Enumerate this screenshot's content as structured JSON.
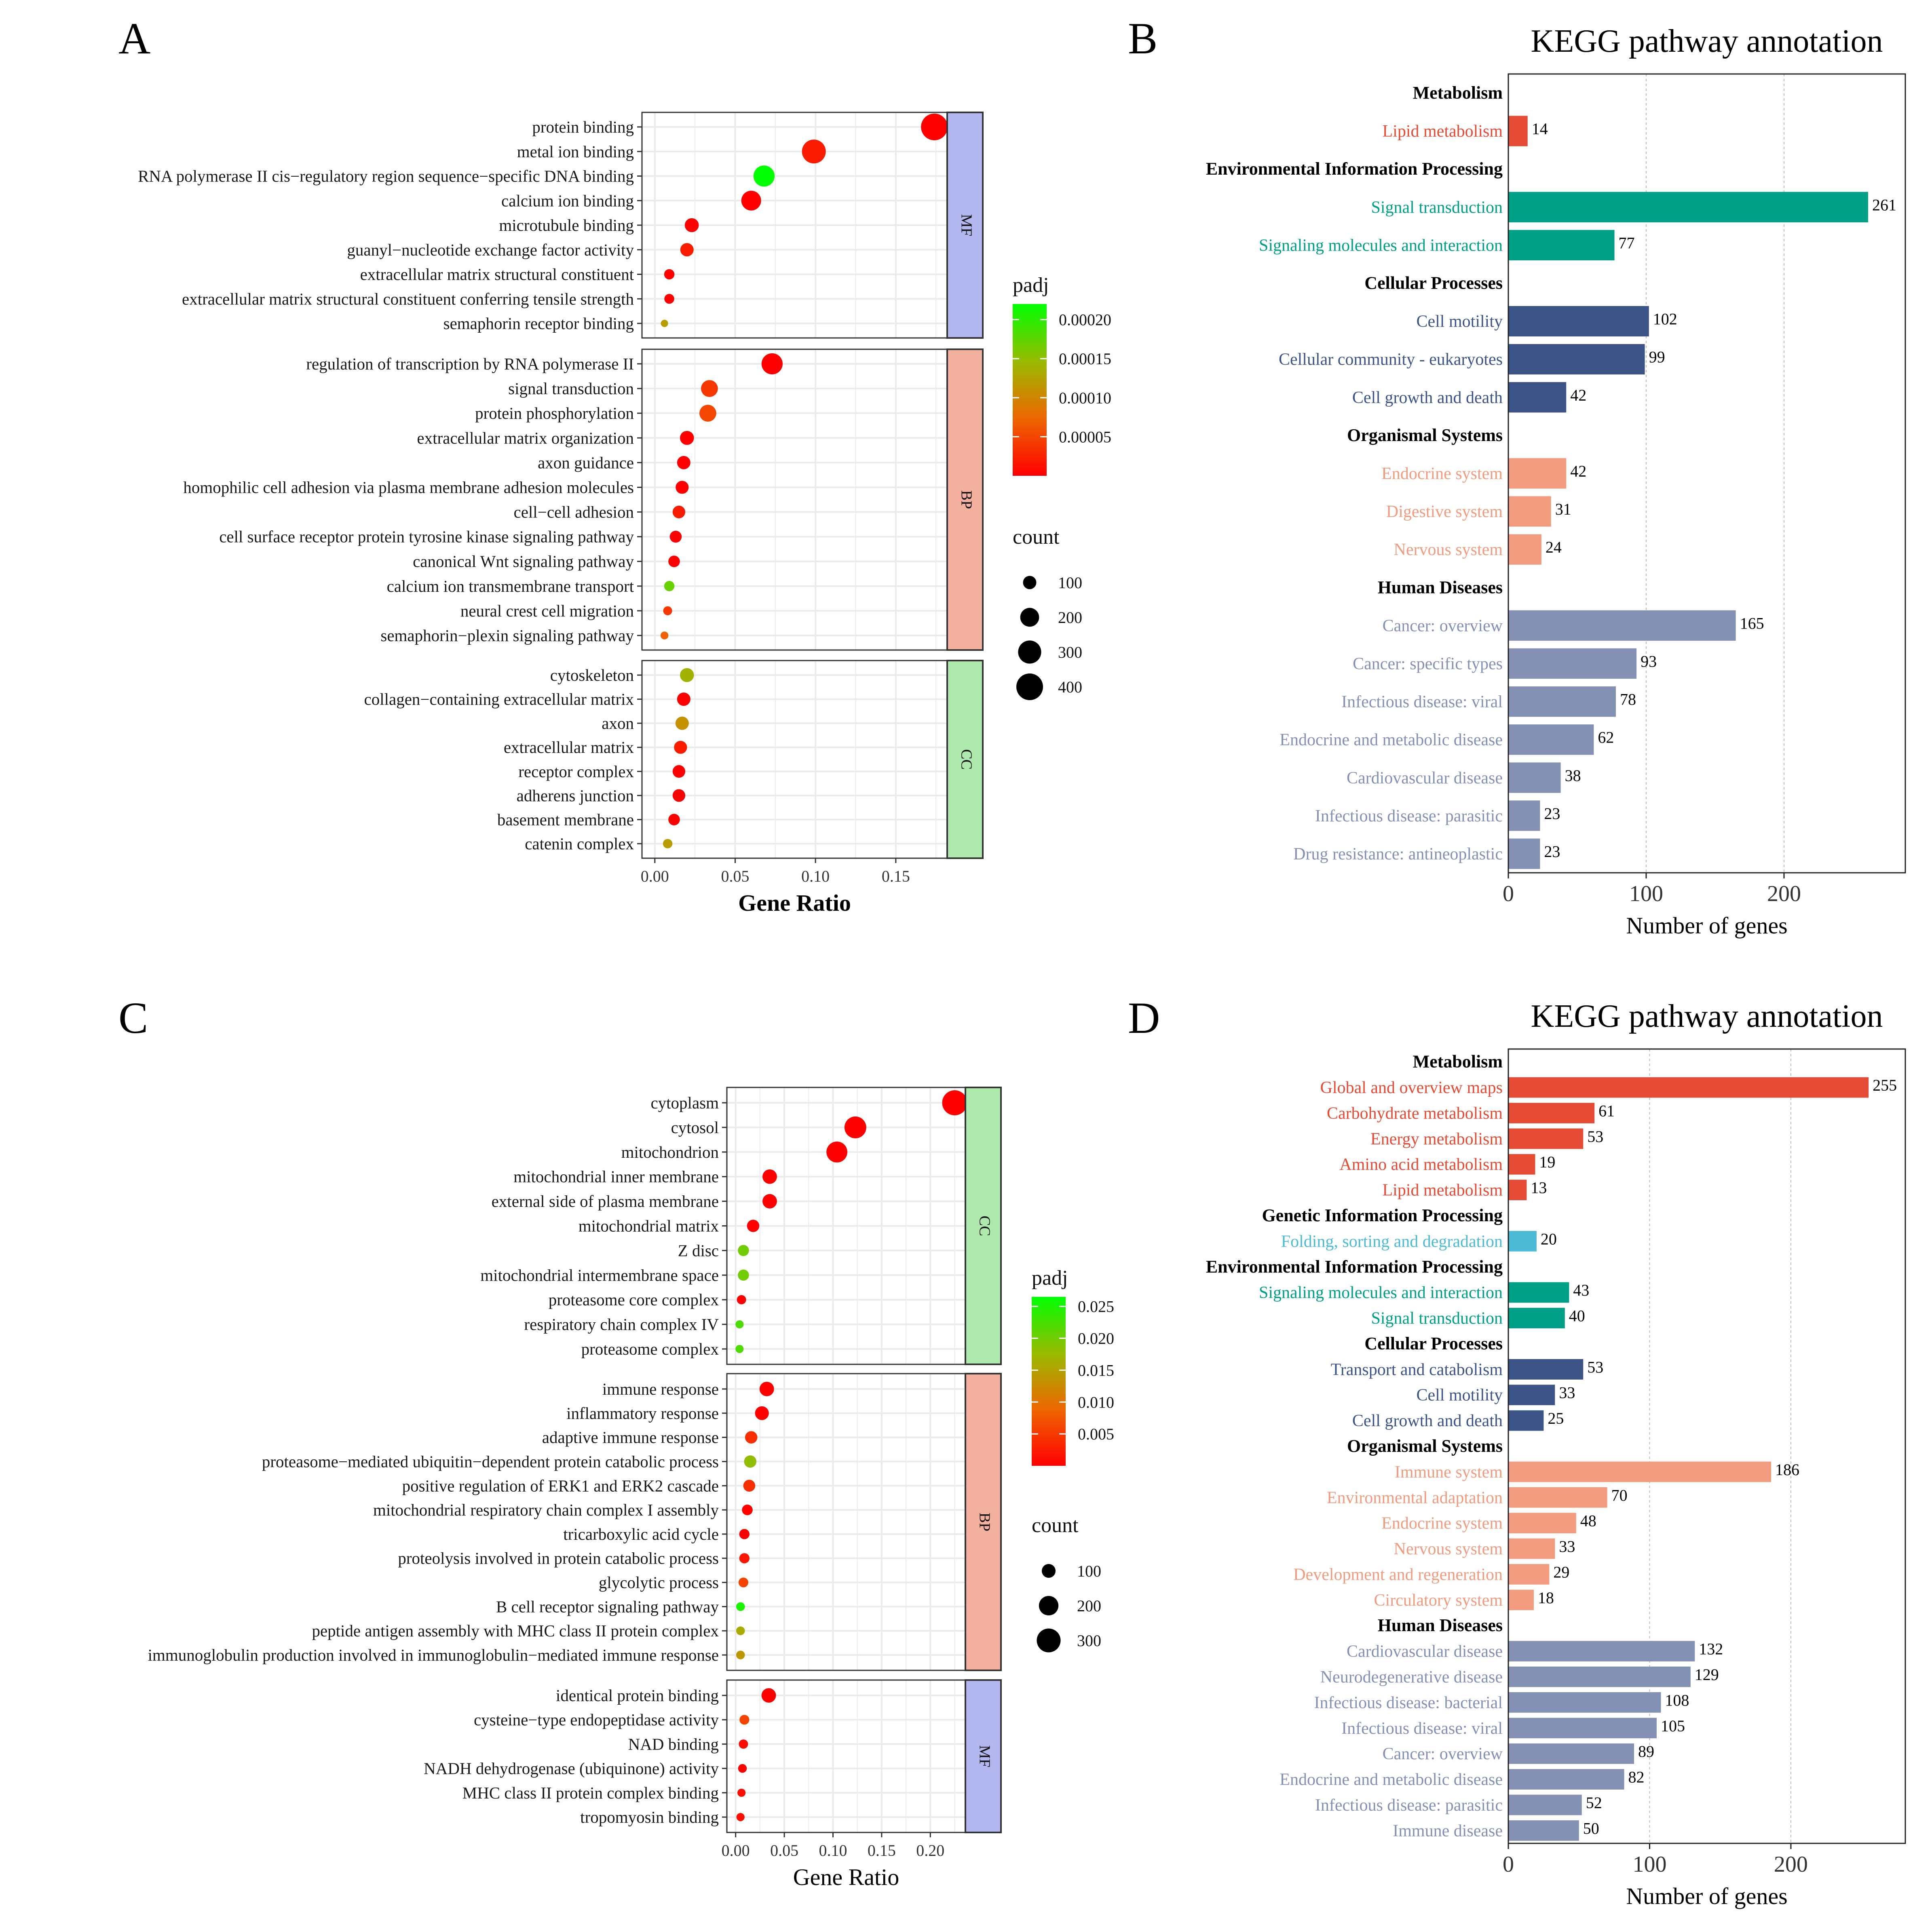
{
  "colors": {
    "padj_low": "#ff0000",
    "padj_mid1": "#ee6600",
    "padj_mid2": "#99bb00",
    "padj_high": "#00ff00",
    "strip_MF": "#b3b7f0",
    "strip_BP": "#f4b09f",
    "strip_CC": "#aee8ad",
    "kegg_Metabolism": "#e64b35",
    "kegg_Genetic": "#4dbbd5",
    "kegg_Environmental": "#00a087",
    "kegg_Cellular": "#3c5488",
    "kegg_Organismal": "#f39b7f",
    "kegg_Human": "#8491b4"
  },
  "chart_data": [
    {
      "panel": "A",
      "type": "scatter",
      "xlabel": "Gene Ratio",
      "xlim": [
        -0.008,
        0.182
      ],
      "xticks": [
        0.0,
        0.05,
        0.1,
        0.15
      ],
      "tick_labels": [
        "0.00",
        "0.05",
        "0.10",
        "0.15"
      ],
      "legend": {
        "padj_title": "padj",
        "padj_range": [
          0.0,
          0.00022
        ],
        "padj_ticks": [
          5e-05,
          0.0001,
          0.00015,
          0.0002
        ],
        "padj_tick_labels": [
          "0.00005",
          "0.00010",
          "0.00015",
          "0.00020"
        ],
        "count_title": "count",
        "count_values": [
          100,
          200,
          300,
          400
        ],
        "count_labels": [
          "100",
          "200",
          "300",
          "400"
        ]
      },
      "facets": [
        {
          "name": "MF",
          "terms": [
            {
              "term": "protein binding",
              "ratio": 0.174,
              "padj": 0.0,
              "count": 400
            },
            {
              "term": "metal ion binding",
              "ratio": 0.099,
              "padj": 2e-05,
              "count": 320
            },
            {
              "term": "RNA polymerase II cis−regulatory region sequence−specific DNA binding",
              "ratio": 0.068,
              "padj": 0.00022,
              "count": 250
            },
            {
              "term": "calcium ion binding",
              "ratio": 0.06,
              "padj": 0.0,
              "count": 220
            },
            {
              "term": "microtubule binding",
              "ratio": 0.023,
              "padj": 0.0,
              "count": 110
            },
            {
              "term": "guanyl−nucleotide exchange factor activity",
              "ratio": 0.02,
              "padj": 2e-05,
              "count": 100
            },
            {
              "term": "extracellular matrix structural constituent",
              "ratio": 0.009,
              "padj": 0.0,
              "count": 60
            },
            {
              "term": "extracellular matrix structural constituent conferring tensile strength",
              "ratio": 0.009,
              "padj": 0.0,
              "count": 55
            },
            {
              "term": "semaphorin receptor binding",
              "ratio": 0.006,
              "padj": 0.00012,
              "count": 30
            }
          ]
        },
        {
          "name": "BP",
          "terms": [
            {
              "term": "regulation of transcription by RNA polymerase II",
              "ratio": 0.073,
              "padj": 0.0,
              "count": 250
            },
            {
              "term": "signal transduction",
              "ratio": 0.034,
              "padj": 4e-05,
              "count": 160
            },
            {
              "term": "protein phosphorylation",
              "ratio": 0.033,
              "padj": 5e-05,
              "count": 160
            },
            {
              "term": "extracellular matrix organization",
              "ratio": 0.02,
              "padj": 0.0,
              "count": 110
            },
            {
              "term": "axon guidance",
              "ratio": 0.018,
              "padj": 0.0,
              "count": 100
            },
            {
              "term": "homophilic cell adhesion via plasma membrane adhesion molecules",
              "ratio": 0.017,
              "padj": 0.0,
              "count": 95
            },
            {
              "term": "cell−cell adhesion",
              "ratio": 0.015,
              "padj": 2e-05,
              "count": 90
            },
            {
              "term": "cell surface receptor protein tyrosine kinase signaling pathway",
              "ratio": 0.013,
              "padj": 0.0,
              "count": 80
            },
            {
              "term": "canonical Wnt signaling pathway",
              "ratio": 0.012,
              "padj": 0.0,
              "count": 75
            },
            {
              "term": "calcium ion transmembrane transport",
              "ratio": 0.009,
              "padj": 0.00017,
              "count": 60
            },
            {
              "term": "neural crest cell migration",
              "ratio": 0.008,
              "padj": 4e-05,
              "count": 45
            },
            {
              "term": "semaphorin−plexin signaling pathway",
              "ratio": 0.006,
              "padj": 7e-05,
              "count": 35
            }
          ]
        },
        {
          "name": "CC",
          "terms": [
            {
              "term": "cytoskeleton",
              "ratio": 0.02,
              "padj": 0.00014,
              "count": 110
            },
            {
              "term": "collagen−containing extracellular matrix",
              "ratio": 0.018,
              "padj": 0.0,
              "count": 100
            },
            {
              "term": "axon",
              "ratio": 0.017,
              "padj": 0.00011,
              "count": 100
            },
            {
              "term": "extracellular matrix",
              "ratio": 0.016,
              "padj": 2e-05,
              "count": 95
            },
            {
              "term": "receptor complex",
              "ratio": 0.015,
              "padj": 0.0,
              "count": 90
            },
            {
              "term": "adherens junction",
              "ratio": 0.015,
              "padj": 0.0,
              "count": 90
            },
            {
              "term": "basement membrane",
              "ratio": 0.012,
              "padj": 0.0,
              "count": 75
            },
            {
              "term": "catenin complex",
              "ratio": 0.008,
              "padj": 0.00012,
              "count": 50
            }
          ]
        }
      ]
    },
    {
      "panel": "B",
      "type": "bar",
      "title": "KEGG pathway annotation",
      "xlabel": "Number of genes",
      "xlim": [
        0,
        288
      ],
      "xticks": [
        0,
        100,
        200
      ],
      "tick_labels": [
        "0",
        "100",
        "200"
      ],
      "groups": [
        {
          "name": "Metabolism",
          "key": "Metabolism",
          "items": [
            {
              "label": "Lipid metabolism",
              "value": 14
            }
          ]
        },
        {
          "name": "Environmental Information Processing",
          "key": "Environmental",
          "items": [
            {
              "label": "Signal transduction",
              "value": 261
            },
            {
              "label": "Signaling molecules and interaction",
              "value": 77
            }
          ]
        },
        {
          "name": "Cellular Processes",
          "key": "Cellular",
          "items": [
            {
              "label": "Cell motility",
              "value": 102
            },
            {
              "label": "Cellular community - eukaryotes",
              "value": 99
            },
            {
              "label": "Cell growth and death",
              "value": 42
            }
          ]
        },
        {
          "name": "Organismal Systems",
          "key": "Organismal",
          "items": [
            {
              "label": "Endocrine system",
              "value": 42
            },
            {
              "label": "Digestive system",
              "value": 31
            },
            {
              "label": "Nervous system",
              "value": 24
            }
          ]
        },
        {
          "name": "Human Diseases",
          "key": "Human",
          "items": [
            {
              "label": "Cancer: overview",
              "value": 165
            },
            {
              "label": "Cancer: specific types",
              "value": 93
            },
            {
              "label": "Infectious disease: viral",
              "value": 78
            },
            {
              "label": "Endocrine and metabolic disease",
              "value": 62
            },
            {
              "label": "Cardiovascular disease",
              "value": 38
            },
            {
              "label": "Infectious disease: parasitic",
              "value": 23
            },
            {
              "label": "Drug resistance: antineoplastic",
              "value": 23
            }
          ]
        }
      ]
    },
    {
      "panel": "C",
      "type": "scatter",
      "xlabel": "Gene Ratio",
      "xlim": [
        -0.009,
        0.236
      ],
      "xticks": [
        0.0,
        0.05,
        0.1,
        0.15,
        0.2
      ],
      "tick_labels": [
        "0.00",
        "0.05",
        "0.10",
        "0.15",
        "0.20"
      ],
      "legend": {
        "padj_title": "padj",
        "padj_range": [
          0.0,
          0.0265
        ],
        "padj_ticks": [
          0.005,
          0.01,
          0.015,
          0.02,
          0.025
        ],
        "padj_tick_labels": [
          "0.005",
          "0.010",
          "0.015",
          "0.020",
          "0.025"
        ],
        "count_title": "count",
        "count_values": [
          100,
          200,
          300
        ],
        "count_labels": [
          "100",
          "200",
          "300"
        ]
      },
      "facets": [
        {
          "name": "CC",
          "terms": [
            {
              "term": "cytoplasm",
              "ratio": 0.225,
              "padj": 0.0,
              "count": 330
            },
            {
              "term": "cytosol",
              "ratio": 0.123,
              "padj": 0.0,
              "count": 250
            },
            {
              "term": "mitochondrion",
              "ratio": 0.104,
              "padj": 0.0,
              "count": 230
            },
            {
              "term": "mitochondrial inner membrane",
              "ratio": 0.035,
              "padj": 0.0,
              "count": 110
            },
            {
              "term": "external side of plasma membrane",
              "ratio": 0.035,
              "padj": 0.0,
              "count": 110
            },
            {
              "term": "mitochondrial matrix",
              "ratio": 0.018,
              "padj": 0.0,
              "count": 80
            },
            {
              "term": "Z disc",
              "ratio": 0.008,
              "padj": 0.02,
              "count": 65
            },
            {
              "term": "mitochondrial intermembrane space",
              "ratio": 0.008,
              "padj": 0.02,
              "count": 65
            },
            {
              "term": "proteasome core complex",
              "ratio": 0.006,
              "padj": 0.0,
              "count": 45
            },
            {
              "term": "respiratory chain complex IV",
              "ratio": 0.004,
              "padj": 0.022,
              "count": 35
            },
            {
              "term": "proteasome complex",
              "ratio": 0.004,
              "padj": 0.022,
              "count": 35
            }
          ]
        },
        {
          "name": "BP",
          "terms": [
            {
              "term": "immune response",
              "ratio": 0.032,
              "padj": 0.0,
              "count": 110
            },
            {
              "term": "inflammatory response",
              "ratio": 0.027,
              "padj": 0.0,
              "count": 100
            },
            {
              "term": "adaptive immune response",
              "ratio": 0.016,
              "padj": 0.004,
              "count": 80
            },
            {
              "term": "proteasome−mediated ubiquitin−dependent protein catabolic process",
              "ratio": 0.015,
              "padj": 0.018,
              "count": 80
            },
            {
              "term": "positive regulation of ERK1 and ERK2 cascade",
              "ratio": 0.014,
              "padj": 0.004,
              "count": 75
            },
            {
              "term": "mitochondrial respiratory chain complex I assembly",
              "ratio": 0.012,
              "padj": 0.0,
              "count": 60
            },
            {
              "term": "tricarboxylic acid cycle",
              "ratio": 0.009,
              "padj": 0.0,
              "count": 55
            },
            {
              "term": "proteolysis involved in protein catabolic process",
              "ratio": 0.009,
              "padj": 0.002,
              "count": 55
            },
            {
              "term": "glycolytic process",
              "ratio": 0.008,
              "padj": 0.006,
              "count": 50
            },
            {
              "term": "B cell receptor signaling pathway",
              "ratio": 0.005,
              "padj": 0.025,
              "count": 40
            },
            {
              "term": "peptide antigen assembly with MHC class II protein complex",
              "ratio": 0.005,
              "padj": 0.016,
              "count": 40
            },
            {
              "term": "immunoglobulin production involved in immunoglobulin−mediated immune response",
              "ratio": 0.005,
              "padj": 0.014,
              "count": 40
            }
          ]
        },
        {
          "name": "MF",
          "terms": [
            {
              "term": "identical protein binding",
              "ratio": 0.034,
              "padj": 0.0,
              "count": 110
            },
            {
              "term": "cysteine−type endopeptidase activity",
              "ratio": 0.009,
              "padj": 0.006,
              "count": 50
            },
            {
              "term": "NAD binding",
              "ratio": 0.008,
              "padj": 0.001,
              "count": 45
            },
            {
              "term": "NADH dehydrogenase (ubiquinone) activity",
              "ratio": 0.007,
              "padj": 0.0,
              "count": 40
            },
            {
              "term": "MHC class II protein complex binding",
              "ratio": 0.006,
              "padj": 0.001,
              "count": 35
            },
            {
              "term": "tropomyosin binding",
              "ratio": 0.005,
              "padj": 0.001,
              "count": 35
            }
          ]
        }
      ]
    },
    {
      "panel": "D",
      "type": "bar",
      "title": "KEGG pathway annotation",
      "xlabel": "Number of genes",
      "xlim": [
        0,
        281
      ],
      "xticks": [
        0,
        100,
        200
      ],
      "tick_labels": [
        "0",
        "100",
        "200"
      ],
      "groups": [
        {
          "name": "Metabolism",
          "key": "Metabolism",
          "items": [
            {
              "label": "Global and overview maps",
              "value": 255
            },
            {
              "label": "Carbohydrate metabolism",
              "value": 61
            },
            {
              "label": "Energy metabolism",
              "value": 53
            },
            {
              "label": "Amino acid metabolism",
              "value": 19
            },
            {
              "label": "Lipid metabolism",
              "value": 13
            }
          ]
        },
        {
          "name": "Genetic Information Processing",
          "key": "Genetic",
          "items": [
            {
              "label": "Folding, sorting and degradation",
              "value": 20
            }
          ]
        },
        {
          "name": "Environmental Information Processing",
          "key": "Environmental",
          "items": [
            {
              "label": "Signaling molecules and interaction",
              "value": 43
            },
            {
              "label": "Signal transduction",
              "value": 40
            }
          ]
        },
        {
          "name": "Cellular Processes",
          "key": "Cellular",
          "items": [
            {
              "label": "Transport and catabolism",
              "value": 53
            },
            {
              "label": "Cell motility",
              "value": 33
            },
            {
              "label": "Cell growth and death",
              "value": 25
            }
          ]
        },
        {
          "name": "Organismal Systems",
          "key": "Organismal",
          "items": [
            {
              "label": "Immune system",
              "value": 186
            },
            {
              "label": "Environmental adaptation",
              "value": 70
            },
            {
              "label": "Endocrine system",
              "value": 48
            },
            {
              "label": "Nervous system",
              "value": 33
            },
            {
              "label": "Development and regeneration",
              "value": 29
            },
            {
              "label": "Circulatory system",
              "value": 18
            }
          ]
        },
        {
          "name": "Human Diseases",
          "key": "Human",
          "items": [
            {
              "label": "Cardiovascular disease",
              "value": 132
            },
            {
              "label": "Neurodegenerative disease",
              "value": 129
            },
            {
              "label": "Infectious disease: bacterial",
              "value": 108
            },
            {
              "label": "Infectious disease: viral",
              "value": 105
            },
            {
              "label": "Cancer: overview",
              "value": 89
            },
            {
              "label": "Endocrine and metabolic disease",
              "value": 82
            },
            {
              "label": "Infectious disease: parasitic",
              "value": 52
            },
            {
              "label": "Immune disease",
              "value": 50
            }
          ]
        }
      ]
    }
  ]
}
